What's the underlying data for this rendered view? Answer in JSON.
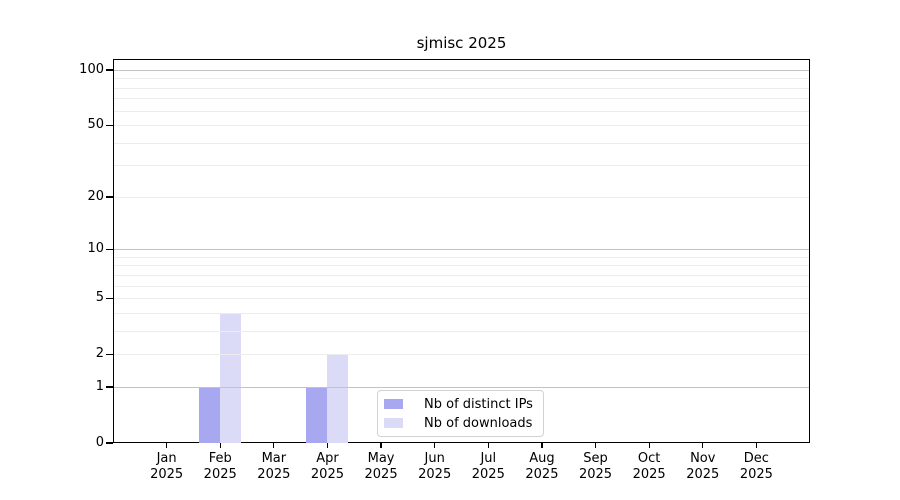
{
  "chart_data": {
    "type": "bar",
    "title": "sjmisc 2025",
    "categories": [
      "Jan",
      "Feb",
      "Mar",
      "Apr",
      "May",
      "Jun",
      "Jul",
      "Aug",
      "Sep",
      "Oct",
      "Nov",
      "Dec"
    ],
    "category_year": "2025",
    "series": [
      {
        "name": "Nb of distinct IPs",
        "color": "#a8a8f0",
        "values": [
          0,
          1,
          0,
          1,
          0,
          0,
          0,
          0,
          0,
          0,
          0,
          0
        ]
      },
      {
        "name": "Nb of downloads",
        "color": "#dbdbf8",
        "values": [
          0,
          4,
          0,
          2,
          0,
          0,
          0,
          0,
          0,
          0,
          0,
          0
        ]
      }
    ],
    "xlabel": "",
    "ylabel": "",
    "y_axis": {
      "scale": "log1p",
      "tick_values": [
        0,
        1,
        2,
        5,
        10,
        20,
        50,
        100
      ],
      "ylim": [
        0,
        115
      ]
    },
    "grid": {
      "major_lines": [
        1,
        10,
        100
      ],
      "minor_lines": [
        2,
        3,
        4,
        5,
        6,
        7,
        8,
        9,
        20,
        30,
        40,
        50,
        60,
        70,
        80,
        90
      ],
      "major_color": "#c3c3c3",
      "minor_color": "#ededed"
    },
    "legend": {
      "position": "bottom-center"
    },
    "axis_color": "#000000"
  }
}
